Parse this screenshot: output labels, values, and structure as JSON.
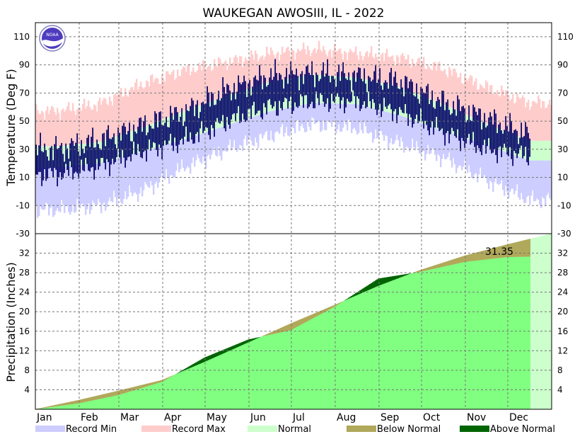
{
  "chart_data": {
    "title": "WAUKEGAN  AWOSIII, IL - 2022",
    "type": "area",
    "colors": {
      "record_min": "#cdcdff",
      "record_max": "#ffcccc",
      "normal": "#ccffcc",
      "observed_temp": "#000066",
      "precip_observed": "#80ff80",
      "below_normal": "#b0a85a",
      "above_normal": "#006400",
      "normal_future": "#ccffcc"
    },
    "months": [
      "Jan",
      "Feb",
      "Mar",
      "Apr",
      "May",
      "Jun",
      "Jul",
      "Aug",
      "Sep",
      "Oct",
      "Nov",
      "Dec"
    ],
    "temperature": {
      "ylabel": "Temperature (Deg F)",
      "ylim": [
        -30,
        120
      ],
      "ticks": [
        -30,
        -10,
        10,
        30,
        50,
        70,
        90,
        110
      ],
      "tick_labels_left": [
        "-30",
        "-10",
        "10",
        "30",
        "50",
        "70",
        "90",
        "110"
      ],
      "tick_labels_right": [
        "-30",
        "-10",
        "10",
        "30",
        "50",
        "70",
        "90",
        "110"
      ],
      "normal_high_monthly": [
        32,
        35,
        45,
        57,
        68,
        78,
        83,
        81,
        74,
        62,
        48,
        36
      ],
      "normal_low_monthly": [
        17,
        20,
        28,
        37,
        47,
        57,
        63,
        62,
        54,
        43,
        33,
        22
      ],
      "record_max_monthly": [
        57,
        62,
        76,
        86,
        92,
        98,
        101,
        98,
        95,
        87,
        74,
        63
      ],
      "record_min_monthly": [
        -13,
        -10,
        0,
        17,
        30,
        40,
        48,
        45,
        34,
        24,
        8,
        -6
      ],
      "observed_high_monthly": [
        30,
        36,
        46,
        56,
        72,
        82,
        84,
        82,
        78,
        63,
        52,
        40
      ],
      "observed_low_monthly": [
        12,
        18,
        28,
        36,
        50,
        60,
        64,
        64,
        56,
        42,
        30,
        25
      ],
      "observed_end_day": 350
    },
    "precipitation": {
      "ylabel": "Precipitation (Inches)",
      "ylim": [
        0,
        36
      ],
      "ticks": [
        4,
        8,
        12,
        16,
        20,
        24,
        28,
        32
      ],
      "tick_labels": [
        "4",
        "8",
        "12",
        "16",
        "20",
        "24",
        "28",
        "32"
      ],
      "top_tick_label": "-30",
      "normal_cumulative_monthly_end": [
        1.9,
        3.8,
        6.0,
        9.7,
        13.7,
        17.6,
        21.4,
        25.3,
        28.6,
        31.5,
        33.8,
        36.0
      ],
      "observed_cumulative_monthly_end": [
        1.2,
        2.9,
        5.6,
        10.6,
        14.3,
        16.2,
        21.0,
        26.8,
        28.2,
        30.2,
        31.2,
        31.35
      ],
      "total_label": "31.35",
      "total_value": 31.35
    },
    "legend": [
      {
        "label": "Record Min",
        "color": "#cdcdff"
      },
      {
        "label": "Record Max",
        "color": "#ffcccc"
      },
      {
        "label": "Normal",
        "color": "#ccffcc"
      },
      {
        "label": "Below Normal",
        "color": "#b0a85a"
      },
      {
        "label": "Above Normal",
        "color": "#006400"
      }
    ],
    "logo_text": "NOAA",
    "grid": true
  }
}
